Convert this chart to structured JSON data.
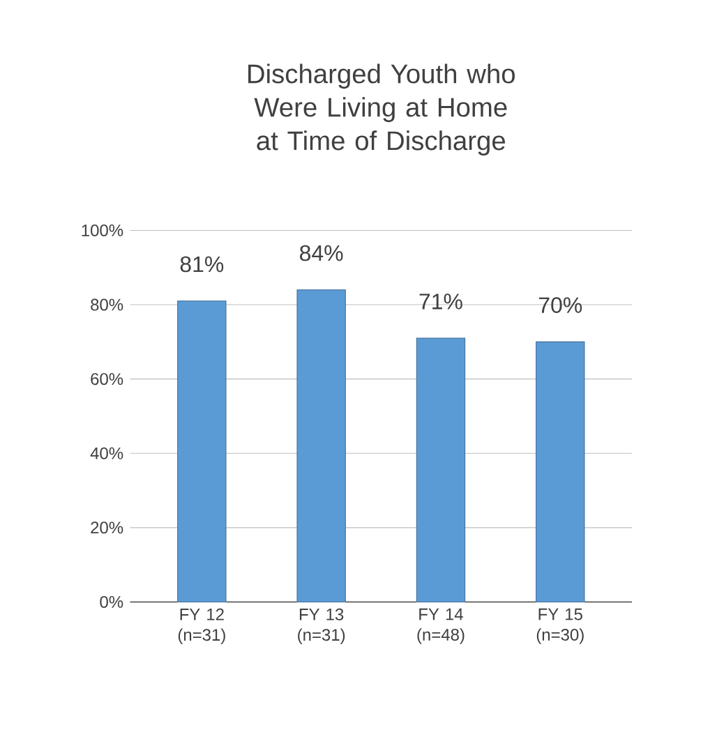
{
  "chart_data": {
    "type": "bar",
    "title": "Discharged Youth who Were Living at Home at Time of Discharge",
    "categories": [
      "FY 12 (n=31)",
      "FY 13 (n=31)",
      "FY 14 (n=48)",
      "FY 15 (n=30)"
    ],
    "values": [
      81,
      84,
      71,
      70
    ],
    "value_labels": [
      "81%",
      "84%",
      "71%",
      "70%"
    ],
    "color": "#5b9bd5",
    "ylim": [
      0,
      100
    ],
    "yticks": [
      {
        "value": 0,
        "label": "0%"
      },
      {
        "value": 20,
        "label": "20%"
      },
      {
        "value": 40,
        "label": "40%"
      },
      {
        "value": 60,
        "label": "60%"
      },
      {
        "value": 80,
        "label": "80%"
      },
      {
        "value": 100,
        "label": "100%"
      }
    ],
    "grid": "y"
  }
}
